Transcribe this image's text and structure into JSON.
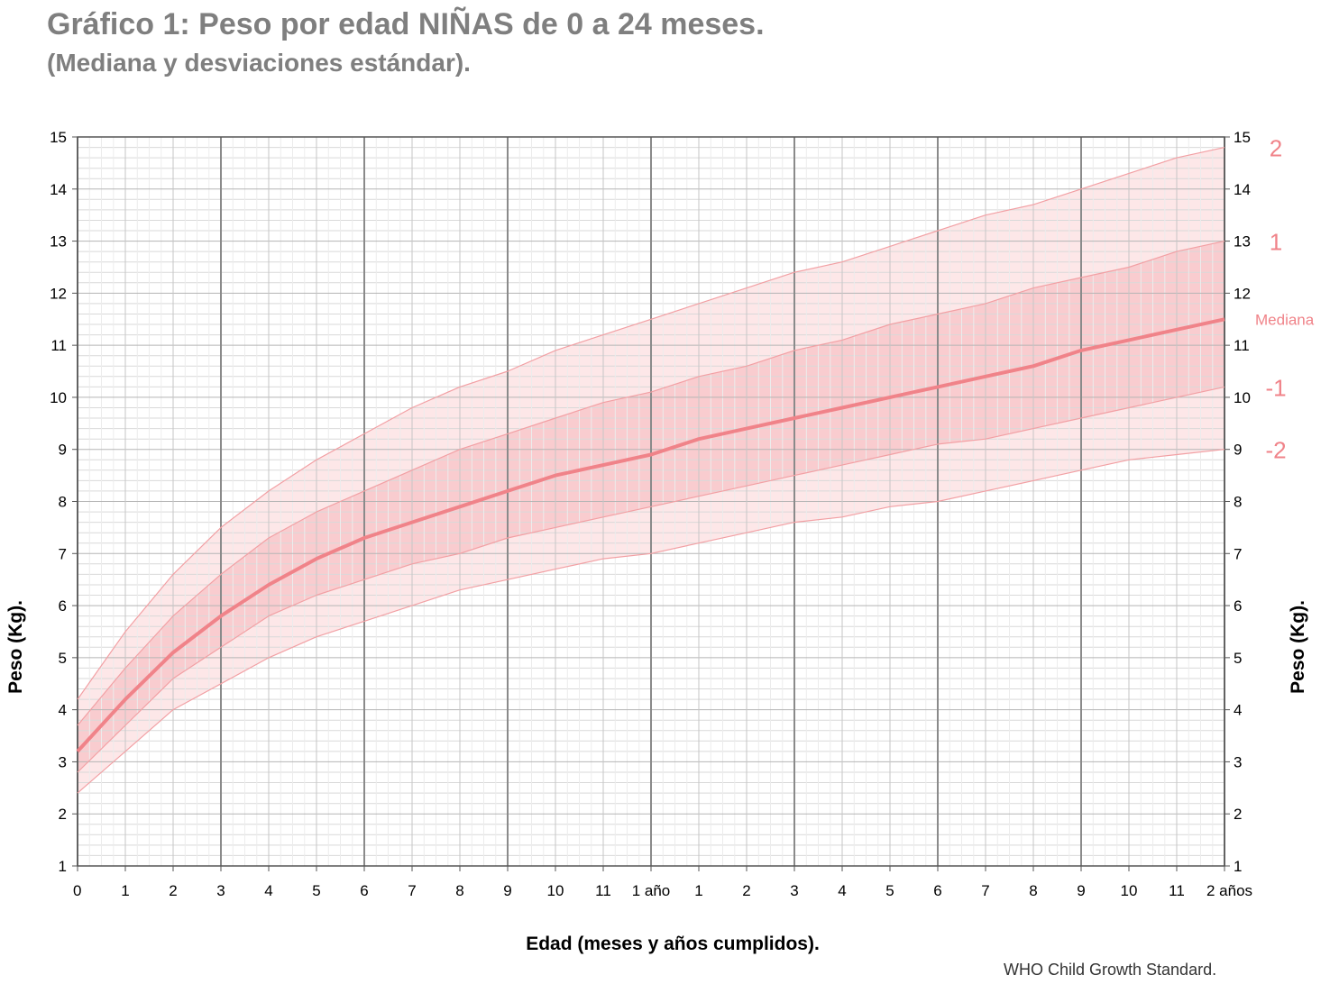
{
  "title": "Gráfico 1:  Peso por edad NIÑAS de 0 a 24 meses.",
  "subtitle": "(Mediana y desviaciones estándar).",
  "ylabel_left": "Peso (Kg).",
  "ylabel_right": "Peso (Kg).",
  "xlabel": "Edad (meses y años  cumplidos).",
  "source": "WHO Child Growth Standard.",
  "colors": {
    "median": "#f08389",
    "band_inner": "#f9cccf",
    "band_outer": "#fde7e8",
    "sd_line": "#f2a0a4",
    "label": "#f08389",
    "grid_major": "#8a8a8a",
    "grid_minor": "#d9d9d9"
  },
  "chart_data": {
    "type": "line",
    "title": "Gráfico 1:  Peso por edad NIÑAS de 0 a 24 meses.",
    "xlabel": "Edad (meses y años  cumplidos).",
    "ylabel": "Peso (Kg).",
    "xlim": [
      0,
      24
    ],
    "ylim": [
      1,
      15
    ],
    "grid": true,
    "x_tick_labels": [
      "0",
      "1",
      "2",
      "3",
      "4",
      "5",
      "6",
      "7",
      "8",
      "9",
      "10",
      "11",
      "1 año",
      "1",
      "2",
      "3",
      "4",
      "5",
      "6",
      "7",
      "8",
      "9",
      "10",
      "11",
      "2 años"
    ],
    "y_ticks": [
      1,
      2,
      3,
      4,
      5,
      6,
      7,
      8,
      9,
      10,
      11,
      12,
      13,
      14,
      15
    ],
    "x": [
      0,
      1,
      2,
      3,
      4,
      5,
      6,
      7,
      8,
      9,
      10,
      11,
      12,
      13,
      14,
      15,
      16,
      17,
      18,
      19,
      20,
      21,
      22,
      23,
      24
    ],
    "series": [
      {
        "name": "2",
        "values": [
          4.2,
          5.5,
          6.6,
          7.5,
          8.2,
          8.8,
          9.3,
          9.8,
          10.2,
          10.5,
          10.9,
          11.2,
          11.5,
          11.8,
          12.1,
          12.4,
          12.6,
          12.9,
          13.2,
          13.5,
          13.7,
          14.0,
          14.3,
          14.6,
          14.8
        ]
      },
      {
        "name": "1",
        "values": [
          3.7,
          4.8,
          5.8,
          6.6,
          7.3,
          7.8,
          8.2,
          8.6,
          9.0,
          9.3,
          9.6,
          9.9,
          10.1,
          10.4,
          10.6,
          10.9,
          11.1,
          11.4,
          11.6,
          11.8,
          12.1,
          12.3,
          12.5,
          12.8,
          13.0
        ]
      },
      {
        "name": "Mediana",
        "values": [
          3.2,
          4.2,
          5.1,
          5.8,
          6.4,
          6.9,
          7.3,
          7.6,
          7.9,
          8.2,
          8.5,
          8.7,
          8.9,
          9.2,
          9.4,
          9.6,
          9.8,
          10.0,
          10.2,
          10.4,
          10.6,
          10.9,
          11.1,
          11.3,
          11.5
        ]
      },
      {
        "name": "-1",
        "values": [
          2.8,
          3.7,
          4.6,
          5.2,
          5.8,
          6.2,
          6.5,
          6.8,
          7.0,
          7.3,
          7.5,
          7.7,
          7.9,
          8.1,
          8.3,
          8.5,
          8.7,
          8.9,
          9.1,
          9.2,
          9.4,
          9.6,
          9.8,
          10.0,
          10.2
        ]
      },
      {
        "name": "-2",
        "values": [
          2.4,
          3.2,
          4.0,
          4.5,
          5.0,
          5.4,
          5.7,
          6.0,
          6.3,
          6.5,
          6.7,
          6.9,
          7.0,
          7.2,
          7.4,
          7.6,
          7.7,
          7.9,
          8.0,
          8.2,
          8.4,
          8.6,
          8.8,
          8.9,
          9.0
        ]
      }
    ]
  }
}
